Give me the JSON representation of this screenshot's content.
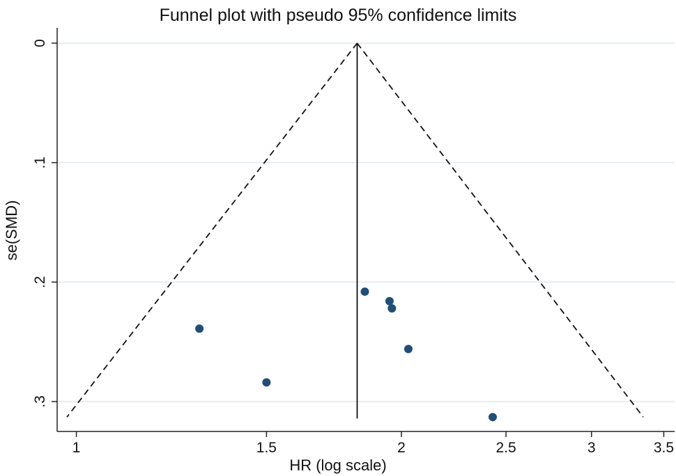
{
  "chart_data": {
    "type": "scatter",
    "title": "Funnel plot with pseudo 95% confidence limits",
    "xlabel": "HR (log scale)",
    "ylabel": "se(SMD)",
    "x_scale": "log",
    "x_ticks": [
      1,
      1.5,
      2,
      2.5,
      3,
      3.5
    ],
    "x_tick_labels": [
      "1",
      "1.5",
      "2",
      "2.5",
      "3",
      "3.5"
    ],
    "xlim": [
      0.98,
      3.55
    ],
    "y_ticks": [
      0,
      0.1,
      0.2,
      0.3
    ],
    "y_tick_labels": [
      "0",
      ".1",
      ".2",
      ".3"
    ],
    "ylim": [
      0,
      0.32
    ],
    "y_reversed": true,
    "grid": true,
    "pooled_estimate_hr": 1.82,
    "funnel_limits": {
      "se_max": 0.313,
      "lower_hr_at_se_max": 0.98,
      "upper_hr_at_se_max": 3.35
    },
    "points": [
      {
        "x": 1.3,
        "y": 0.239
      },
      {
        "x": 1.5,
        "y": 0.284
      },
      {
        "x": 1.85,
        "y": 0.208
      },
      {
        "x": 1.95,
        "y": 0.216
      },
      {
        "x": 1.96,
        "y": 0.222
      },
      {
        "x": 2.03,
        "y": 0.256
      },
      {
        "x": 2.43,
        "y": 0.313
      }
    ],
    "colors": {
      "points": "#1f4e79",
      "grid": "#dce9ef",
      "axis": "#222222"
    }
  }
}
